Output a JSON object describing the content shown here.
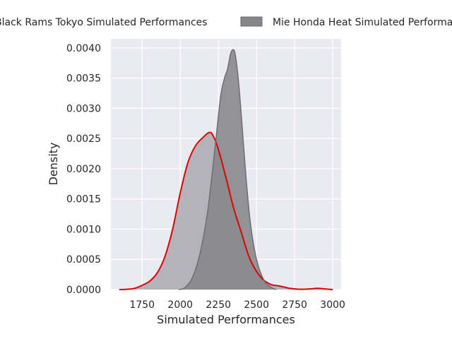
{
  "chart_data": {
    "type": "area",
    "title": "",
    "xlabel": "Simulated Performances",
    "ylabel": "Density",
    "xlim": [
      1545,
      3055
    ],
    "ylim": [
      0,
      0.00415
    ],
    "grid": true,
    "legend_position": "top",
    "x_ticks": [
      1750,
      2000,
      2250,
      2500,
      2750,
      3000
    ],
    "x_tick_labels": [
      "1750",
      "2000",
      "2250",
      "2500",
      "2750",
      "3000"
    ],
    "y_ticks": [
      0,
      0.0005,
      0.001,
      0.0015,
      0.002,
      0.0025,
      0.003,
      0.0035,
      0.004
    ],
    "y_tick_labels": [
      "0.0000",
      "0.0005",
      "0.0010",
      "0.0015",
      "0.0020",
      "0.0025",
      "0.0030",
      "0.0035",
      "0.0040"
    ],
    "series": [
      {
        "name": "Black Rams Tokyo Simulated Performances",
        "fill_color": "#b2b0b6",
        "line_color": "#e00000",
        "points": [
          [
            1600,
            0
          ],
          [
            1650,
            5e-06
          ],
          [
            1700,
            2e-05
          ],
          [
            1750,
            7e-05
          ],
          [
            1800,
            0.00014
          ],
          [
            1850,
            0.00028
          ],
          [
            1900,
            0.00055
          ],
          [
            1950,
            0.001
          ],
          [
            2000,
            0.0016
          ],
          [
            2050,
            0.0021
          ],
          [
            2100,
            0.00238
          ],
          [
            2150,
            0.00252
          ],
          [
            2190,
            0.0026
          ],
          [
            2215,
            0.00255
          ],
          [
            2250,
            0.00232
          ],
          [
            2300,
            0.00185
          ],
          [
            2350,
            0.00135
          ],
          [
            2400,
            0.00095
          ],
          [
            2450,
            0.00055
          ],
          [
            2500,
            0.0003
          ],
          [
            2550,
            0.00015
          ],
          [
            2600,
            8e-05
          ],
          [
            2650,
            6e-05
          ],
          [
            2700,
            3e-05
          ],
          [
            2750,
            1e-05
          ],
          [
            2800,
            5e-06
          ],
          [
            2850,
            1e-05
          ],
          [
            2900,
            2e-05
          ],
          [
            2950,
            1e-05
          ],
          [
            3000,
            0
          ]
        ]
      },
      {
        "name": "Mie Honda Heat Simulated Performances",
        "fill_color": "#868589",
        "line_color": "#6e6e72",
        "points": [
          [
            1990,
            0
          ],
          [
            2030,
            3e-05
          ],
          [
            2080,
            0.0002
          ],
          [
            2130,
            0.0006
          ],
          [
            2180,
            0.0013
          ],
          [
            2230,
            0.0024
          ],
          [
            2265,
            0.0032
          ],
          [
            2290,
            0.0035
          ],
          [
            2310,
            0.00365
          ],
          [
            2330,
            0.0039
          ],
          [
            2345,
            0.00397
          ],
          [
            2360,
            0.0039
          ],
          [
            2380,
            0.0035
          ],
          [
            2400,
            0.0029
          ],
          [
            2430,
            0.0019
          ],
          [
            2460,
            0.0011
          ],
          [
            2500,
            0.0005
          ],
          [
            2550,
            0.00015
          ],
          [
            2600,
            3e-05
          ],
          [
            2630,
            0
          ]
        ]
      }
    ]
  }
}
